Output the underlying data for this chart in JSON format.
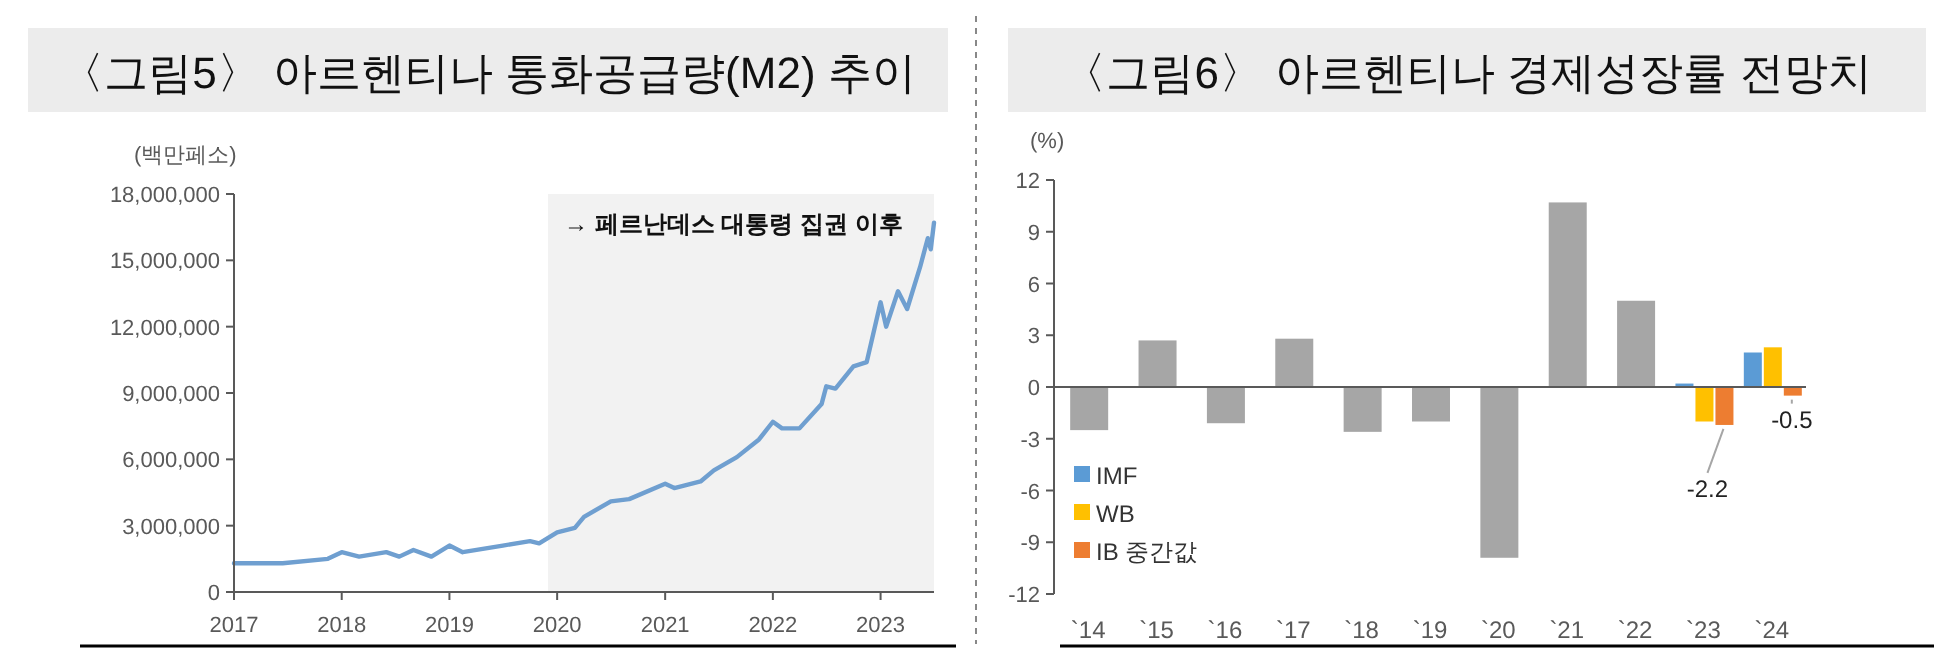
{
  "chart_data": [
    {
      "type": "line",
      "title": "〈그림5〉 아르헨티나 통화공급량(M2) 추이",
      "ylabel": "(백만페소)",
      "x": [
        "2017-01-01",
        "2017-06-15",
        "2017-11-15",
        "2018-01-01",
        "2018-03-01",
        "2018-06-01",
        "2018-07-15",
        "2018-09-01",
        "2018-11-01",
        "2019-01-01",
        "2019-02-15",
        "2019-07-01",
        "2019-10-01",
        "2019-11-01",
        "2020-01-01",
        "2020-03-01",
        "2020-04-01",
        "2020-07-01",
        "2020-09-01",
        "2021-01-01",
        "2021-02-01",
        "2021-05-01",
        "2021-06-15",
        "2021-09-01",
        "2021-11-15",
        "2022-01-01",
        "2022-02-01",
        "2022-04-01",
        "2022-06-15",
        "2022-07-01",
        "2022-08-01",
        "2022-10-01",
        "2022-11-15",
        "2023-01-01",
        "2023-01-20",
        "2023-03-01",
        "2023-04-01",
        "2023-05-15",
        "2023-06-10",
        "2023-06-20",
        "2023-07-01"
      ],
      "series": [
        {
          "color": "#6f9fd0",
          "values": [
            1300000,
            1300000,
            1500000,
            1800000,
            1600000,
            1800000,
            1600000,
            1900000,
            1600000,
            2100000,
            1800000,
            2100000,
            2300000,
            2200000,
            2700000,
            2900000,
            3400000,
            4100000,
            4200000,
            4900000,
            4700000,
            5000000,
            5500000,
            6100000,
            6900000,
            7700000,
            7400000,
            7400000,
            8500000,
            9300000,
            9200000,
            10200000,
            10400000,
            13100000,
            12000000,
            13600000,
            12800000,
            14700000,
            16000000,
            15500000,
            16700000
          ]
        }
      ],
      "xlim": [
        "2017-01-01",
        "2023-07-01"
      ],
      "xticks": [
        "2017",
        "2018",
        "2019",
        "2020",
        "2021",
        "2022",
        "2023"
      ],
      "ylim": [
        0,
        18000000
      ],
      "yticks": [
        {
          "value": 0,
          "label": "0"
        },
        {
          "value": 3000000,
          "label": "3,000,000"
        },
        {
          "value": 6000000,
          "label": "6,000,000"
        },
        {
          "value": 9000000,
          "label": "9,000,000"
        },
        {
          "value": 12000000,
          "label": "12,000,000"
        },
        {
          "value": 15000000,
          "label": "15,000,000"
        },
        {
          "value": 18000000,
          "label": "18,000,000"
        }
      ],
      "bands": [
        {
          "axis": "x",
          "from": "2019-12-01",
          "to": "2023-07-01",
          "label": "→ 페르난데스 대통령 집권 이후",
          "color": "#f2f2f2"
        }
      ],
      "grid": false,
      "legend": false
    },
    {
      "type": "bar",
      "title": "〈그림6〉 아르헨티나 경제성장률 전망치",
      "ylabel": "(%)",
      "categories": [
        "`14",
        "`15",
        "`16",
        "`17",
        "`18",
        "`19",
        "`20",
        "`21",
        "`22",
        "`23",
        "`24"
      ],
      "series": [
        {
          "color": "#a6a6a6",
          "values": [
            -2.5,
            2.7,
            -2.1,
            2.8,
            -2.6,
            -2.0,
            -9.9,
            10.7,
            5.0,
            null,
            null
          ]
        },
        {
          "name": "IMF",
          "color": "#5b9bd5",
          "values": [
            null,
            null,
            null,
            null,
            null,
            null,
            null,
            null,
            null,
            0.2,
            2.0
          ]
        },
        {
          "name": "WB",
          "color": "#ffc000",
          "values": [
            null,
            null,
            null,
            null,
            null,
            null,
            null,
            null,
            null,
            -2.0,
            2.3
          ]
        },
        {
          "name": "IB 중간값",
          "color": "#ed7d31",
          "values": [
            null,
            null,
            null,
            null,
            null,
            null,
            null,
            null,
            null,
            -2.2,
            -0.5
          ],
          "value_labels": [
            null,
            null,
            null,
            null,
            null,
            null,
            null,
            null,
            null,
            "-2.2",
            "-0.5"
          ]
        }
      ],
      "ylim": [
        -12,
        12
      ],
      "yticks": [
        -12,
        -9,
        -6,
        -3,
        0,
        3,
        6,
        9,
        12
      ],
      "legend": "bottom left"
    }
  ]
}
